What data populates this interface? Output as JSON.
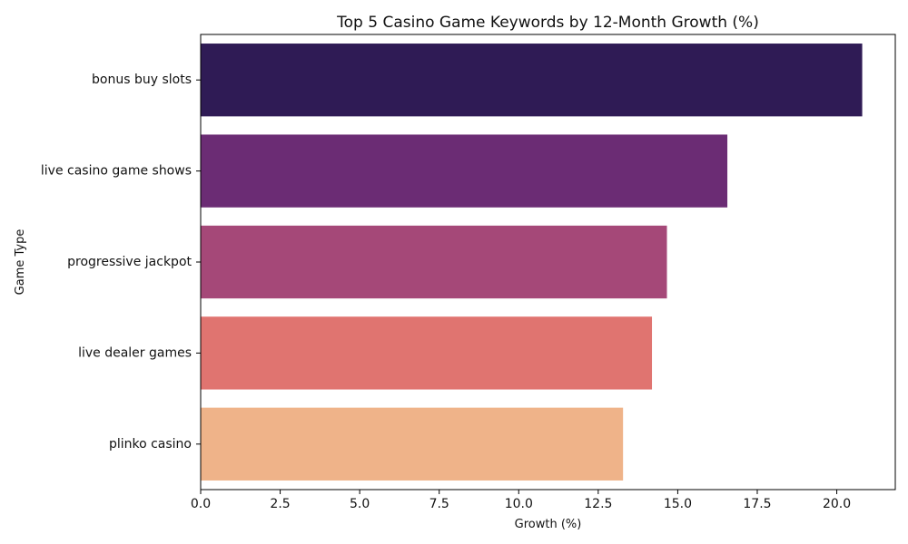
{
  "chart_data": {
    "type": "bar",
    "orientation": "horizontal",
    "title": "Top 5 Casino Game Keywords by 12-Month Growth (%)",
    "xlabel": "Growth (%)",
    "ylabel": "Game Type",
    "categories": [
      "bonus buy slots",
      "live casino game shows",
      "progressive jackpot",
      "live dealer games",
      "plinko casino"
    ],
    "values": [
      20.8,
      16.56,
      14.66,
      14.19,
      13.28
    ],
    "colors": [
      "#2f1b55",
      "#6b2c74",
      "#a54878",
      "#e07470",
      "#efb389"
    ],
    "xlim": [
      0,
      21.84
    ],
    "xticks": [
      0.0,
      2.5,
      5.0,
      7.5,
      10.0,
      12.5,
      15.0,
      17.5,
      20.0
    ],
    "xtick_labels": [
      "0.0",
      "2.5",
      "5.0",
      "7.5",
      "10.0",
      "12.5",
      "15.0",
      "17.5",
      "20.0"
    ],
    "grid": false,
    "legend": "none"
  }
}
